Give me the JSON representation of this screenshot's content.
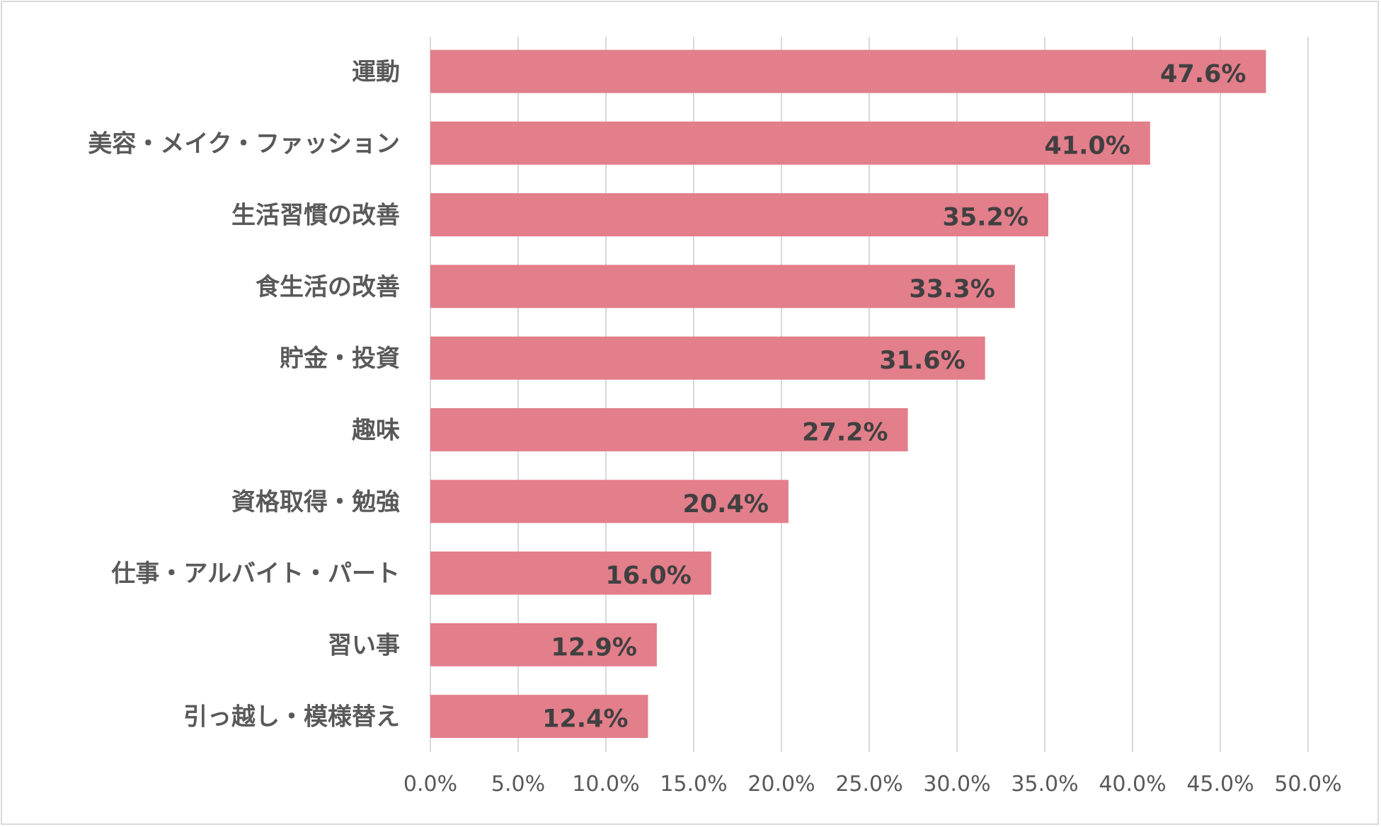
{
  "chart_data": {
    "type": "bar",
    "orientation": "horizontal",
    "categories": [
      "運動",
      "美容・メイク・ファッション",
      "生活習慣の改善",
      "食生活の改善",
      "貯金・投資",
      "趣味",
      "資格取得・勉強",
      "仕事・アルバイト・パート",
      "習い事",
      "引っ越し・模様替え"
    ],
    "values": [
      47.6,
      41.0,
      35.2,
      33.3,
      31.6,
      27.2,
      20.4,
      16.0,
      12.9,
      12.4
    ],
    "value_labels": [
      "47.6%",
      "41.0%",
      "35.2%",
      "33.3%",
      "31.6%",
      "27.2%",
      "20.4%",
      "16.0%",
      "12.9%",
      "12.4%"
    ],
    "xlim": [
      0,
      50
    ],
    "xticks": [
      "0.0%",
      "5.0%",
      "10.0%",
      "15.0%",
      "20.0%",
      "25.0%",
      "30.0%",
      "35.0%",
      "40.0%",
      "45.0%",
      "50.0%"
    ],
    "grid": true,
    "title": "",
    "xlabel": "",
    "ylabel": "",
    "colors": {
      "bar": "#e37e8b",
      "grid": "#d9d9d9",
      "category_text": "#595959",
      "value_text": "#404040"
    }
  }
}
